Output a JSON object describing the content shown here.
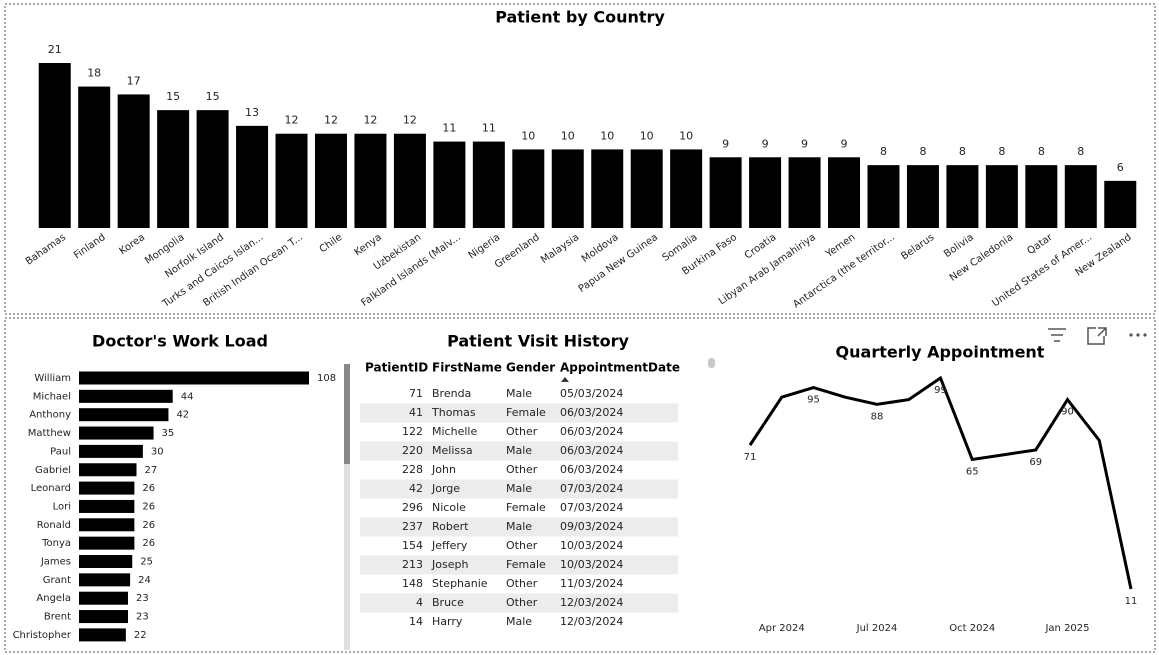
{
  "chart_data": [
    {
      "type": "bar",
      "title": "Patient by Country",
      "categories": [
        "Bahamas",
        "Finland",
        "Korea",
        "Mongolia",
        "Norfolk Island",
        "Turks and Caicos Islan...",
        "British Indian Ocean T...",
        "Chile",
        "Kenya",
        "Uzbekistan",
        "Falkland Islands (Malv...",
        "Nigeria",
        "Greenland",
        "Malaysia",
        "Moldova",
        "Papua New Guinea",
        "Somalia",
        "Burkina Faso",
        "Croatia",
        "Libyan Arab Jamahiriya",
        "Yemen",
        "Antarctica (the territor...",
        "Belarus",
        "Bolivia",
        "New Caledonia",
        "Qatar",
        "United States of Amer...",
        "New Zealand"
      ],
      "values": [
        21,
        18,
        17,
        15,
        15,
        13,
        12,
        12,
        12,
        12,
        11,
        11,
        10,
        10,
        10,
        10,
        10,
        9,
        9,
        9,
        9,
        8,
        8,
        8,
        8,
        8,
        8,
        6
      ],
      "color": "#000000"
    },
    {
      "type": "hbar",
      "title": "Doctor's Work Load",
      "categories": [
        "William",
        "Michael",
        "Anthony",
        "Matthew",
        "Paul",
        "Gabriel",
        "Leonard",
        "Lori",
        "Ronald",
        "Tonya",
        "James",
        "Grant",
        "Angela",
        "Brent",
        "Christopher"
      ],
      "values": [
        108,
        44,
        42,
        35,
        30,
        27,
        26,
        26,
        26,
        26,
        25,
        24,
        23,
        23,
        22
      ],
      "color": "#000000"
    },
    {
      "type": "line",
      "title": "Quarterly Appointment",
      "x": [
        "2024-03",
        "2024-04",
        "2024-05",
        "2024-06",
        "2024-07",
        "2024-08",
        "2024-09",
        "2024-10",
        "2024-11",
        "2024-12",
        "2025-01",
        "2025-02",
        "2025-03"
      ],
      "values": [
        71,
        91,
        95,
        91,
        88,
        90,
        99,
        65,
        67,
        69,
        90,
        73,
        11
      ],
      "value_labels": [
        "71",
        null,
        "95",
        null,
        "88",
        null,
        "99",
        "65",
        null,
        "69",
        "90",
        null,
        "11"
      ],
      "xlim": [
        "2024-03",
        "2025-03"
      ],
      "xticks": [
        {
          "value": "2024-04",
          "label": "Apr 2024"
        },
        {
          "value": "2024-07",
          "label": "Jul 2024"
        },
        {
          "value": "2024-10",
          "label": "Oct 2024"
        },
        {
          "value": "2025-01",
          "label": "Jan 2025"
        }
      ],
      "color": "#000000"
    }
  ],
  "table": {
    "title": "Patient Visit History",
    "columns": [
      "PatientID",
      "FirstName",
      "Gender",
      "AppointmentDate"
    ],
    "sort_column": 3,
    "rows": [
      [
        71,
        "Brenda",
        "Male",
        "05/03/2024"
      ],
      [
        41,
        "Thomas",
        "Female",
        "06/03/2024"
      ],
      [
        122,
        "Michelle",
        "Other",
        "06/03/2024"
      ],
      [
        220,
        "Melissa",
        "Male",
        "06/03/2024"
      ],
      [
        228,
        "John",
        "Other",
        "06/03/2024"
      ],
      [
        42,
        "Jorge",
        "Male",
        "07/03/2024"
      ],
      [
        296,
        "Nicole",
        "Female",
        "07/03/2024"
      ],
      [
        237,
        "Robert",
        "Male",
        "09/03/2024"
      ],
      [
        154,
        "Jeffery",
        "Other",
        "10/03/2024"
      ],
      [
        213,
        "Joseph",
        "Female",
        "10/03/2024"
      ],
      [
        148,
        "Stephanie",
        "Other",
        "11/03/2024"
      ],
      [
        4,
        "Bruce",
        "Other",
        "12/03/2024"
      ],
      [
        14,
        "Harry",
        "Male",
        "12/03/2024"
      ]
    ]
  }
}
